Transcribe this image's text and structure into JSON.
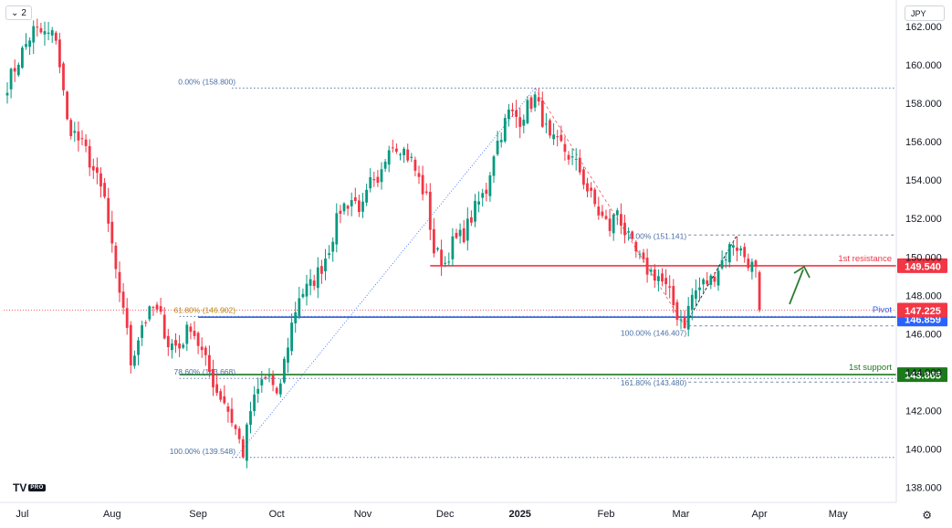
{
  "toolbar": {
    "interval_count": "2",
    "currency": "JPY"
  },
  "logo": {
    "mark": "TV",
    "badge": "PRO"
  },
  "chart_data": {
    "type": "candlestick",
    "symbol_currency": "JPY",
    "price_axis": {
      "min": 137.3,
      "max": 163.2,
      "ticks": [
        "138.000",
        "140.000",
        "142.000",
        "144.000",
        "146.000",
        "148.000",
        "150.000",
        "152.000",
        "154.000",
        "156.000",
        "158.000",
        "160.000",
        "162.000"
      ]
    },
    "time_axis": {
      "labels": [
        {
          "label": "Jul",
          "bar": 4
        },
        {
          "label": "Aug",
          "bar": 28
        },
        {
          "label": "Sep",
          "bar": 51
        },
        {
          "label": "Oct",
          "bar": 72
        },
        {
          "label": "Nov",
          "bar": 95
        },
        {
          "label": "Dec",
          "bar": 117
        },
        {
          "label": "2025",
          "bar": 137,
          "bold": true
        },
        {
          "label": "Feb",
          "bar": 160
        },
        {
          "label": "Mar",
          "bar": 180
        },
        {
          "label": "Apr",
          "bar": 201
        },
        {
          "label": "May",
          "bar": 222
        }
      ]
    },
    "candle_anchors": [
      [
        0,
        159.0
      ],
      [
        4,
        160.7
      ],
      [
        7,
        161.8
      ],
      [
        10,
        161.6
      ],
      [
        13,
        161.5
      ],
      [
        16,
        157.0
      ],
      [
        21,
        155.5
      ],
      [
        24,
        154.0
      ],
      [
        26,
        153.0
      ],
      [
        29,
        149.0
      ],
      [
        31,
        147.5
      ],
      [
        33,
        144.5
      ],
      [
        36,
        146.5
      ],
      [
        39,
        147.3
      ],
      [
        41,
        146.8
      ],
      [
        43,
        145.5
      ],
      [
        46,
        145.3
      ],
      [
        49,
        146.5
      ],
      [
        52,
        145.0
      ],
      [
        56,
        143.0
      ],
      [
        58,
        142.5
      ],
      [
        61,
        141.0
      ],
      [
        63,
        139.8
      ],
      [
        65,
        142.0
      ],
      [
        68,
        143.5
      ],
      [
        70,
        143.8
      ],
      [
        72,
        142.5
      ],
      [
        74,
        144.5
      ],
      [
        76,
        146.5
      ],
      [
        78,
        148.0
      ],
      [
        81,
        148.5
      ],
      [
        84,
        149.5
      ],
      [
        86,
        150.5
      ],
      [
        89,
        152.5
      ],
      [
        92,
        153.0
      ],
      [
        95,
        152.5
      ],
      [
        97,
        153.8
      ],
      [
        99,
        153.5
      ],
      [
        102,
        156.0
      ],
      [
        105,
        155.8
      ],
      [
        108,
        155.0
      ],
      [
        112,
        153.0
      ],
      [
        114,
        150.3
      ],
      [
        117,
        149.7
      ],
      [
        119,
        150.7
      ],
      [
        122,
        151.2
      ],
      [
        125,
        152.5
      ],
      [
        128,
        153.5
      ],
      [
        130,
        155.5
      ],
      [
        132,
        156.5
      ],
      [
        134,
        157.5
      ],
      [
        137,
        157.2
      ],
      [
        139,
        157.8
      ],
      [
        141,
        158.3
      ],
      [
        143,
        157.2
      ],
      [
        145,
        156.0
      ],
      [
        148,
        155.8
      ],
      [
        150,
        155.3
      ],
      [
        153,
        154.5
      ],
      [
        155,
        153.5
      ],
      [
        158,
        152.3
      ],
      [
        161,
        151.5
      ],
      [
        163,
        152.5
      ],
      [
        165,
        151.3
      ],
      [
        167,
        150.5
      ],
      [
        170,
        149.5
      ],
      [
        172,
        149.2
      ],
      [
        174,
        149.0
      ],
      [
        177,
        148.0
      ],
      [
        179,
        147.0
      ],
      [
        181,
        146.6
      ],
      [
        183,
        148.0
      ],
      [
        186,
        148.6
      ],
      [
        188,
        148.8
      ],
      [
        191,
        149.8
      ],
      [
        194,
        150.8
      ],
      [
        196,
        150.3
      ],
      [
        198,
        149.8
      ],
      [
        200,
        149.2
      ],
      [
        201,
        147.225
      ]
    ],
    "last_price": 147.225,
    "levels": [
      {
        "name": "1st resistance",
        "value": 149.54,
        "label": "149.540",
        "color": "#f23645"
      },
      {
        "name": "Pivot",
        "value": 146.859,
        "label": "146.859",
        "color": "#2962ff"
      },
      {
        "name": "1st support",
        "value": 143.865,
        "label": "143.865",
        "color": "#1b7a1b"
      }
    ],
    "current_price_label": {
      "value": 147.225,
      "label": "147.225",
      "color": "#f23645"
    },
    "fibonacci": {
      "big": [
        {
          "text": "0.00% (158.800)",
          "value": 158.8
        },
        {
          "text": "61.80% (146.902)",
          "value": 146.902
        },
        {
          "text": "78.60% (143.668)",
          "value": 143.668
        },
        {
          "text": "100.00% (139.548)",
          "value": 139.548
        }
      ],
      "small": [
        {
          "text": "0.00% (151.141)",
          "value": 151.141
        },
        {
          "text": "100.00% (146.407)",
          "value": 146.407
        },
        {
          "text": "161.80% (143.480)",
          "value": 143.48
        }
      ]
    },
    "trend_arrow": {
      "direction": "up",
      "color": "#2e7d32"
    },
    "colors": {
      "up": "#089981",
      "down": "#f23645",
      "axis_text": "#131722",
      "grid": "none"
    }
  }
}
